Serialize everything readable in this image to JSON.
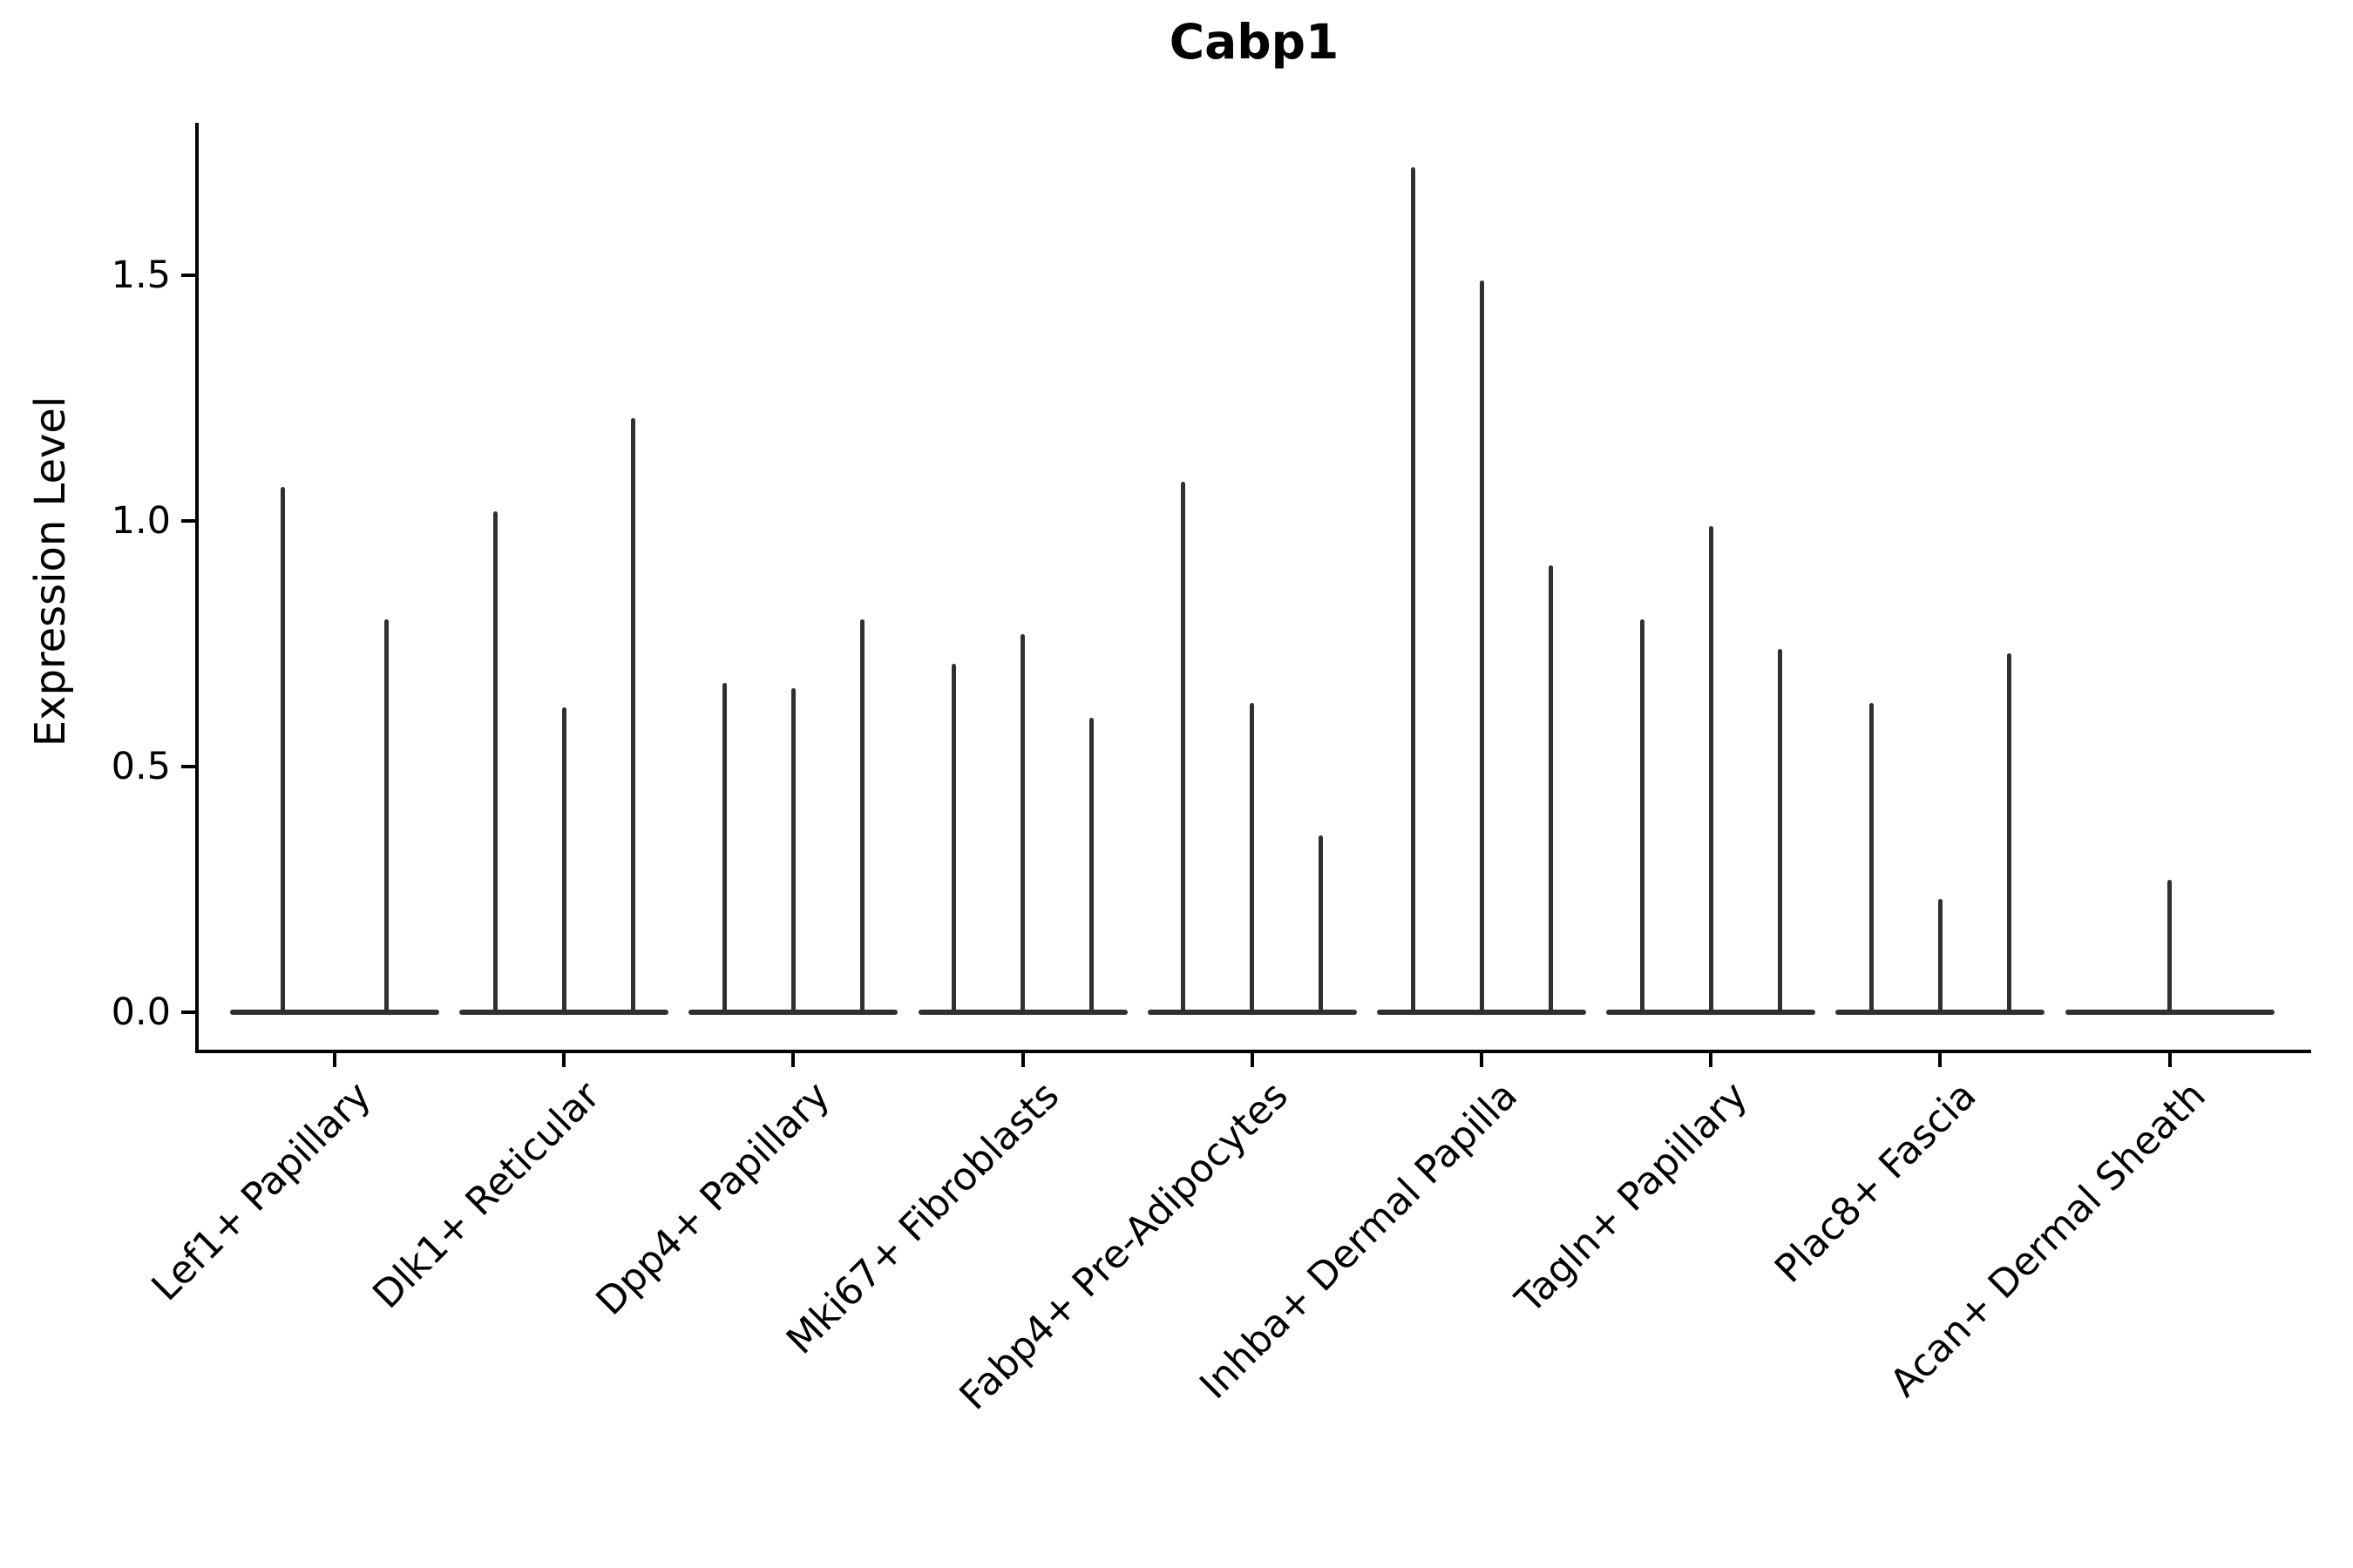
{
  "figure": {
    "title": "Cabp1"
  },
  "chart_data": {
    "type": "violin",
    "title": "Cabp1",
    "ylabel": "Expression Level",
    "xlabel": "",
    "ytick_labels": [
      "0.0",
      "0.5",
      "1.0",
      "1.5"
    ],
    "ytick_values": [
      0.0,
      0.5,
      1.0,
      1.5
    ],
    "ylim": [
      -0.08,
      1.81
    ],
    "grid": false,
    "legend": "none",
    "ink_color": "#000000",
    "violin_color": "#303030",
    "categories": [
      "Lef1+ Papillary",
      "Dlk1+ Reticular",
      "Dpp4+ Papillary",
      "Mki67+ Fibroblasts",
      "Fabp4+ Pre-Adipocytes",
      "Inhba+ Dermal Papilla",
      "Tagln+ Papillary",
      "Plac8+ Fascia",
      "Acan+ Dermal Sheath"
    ],
    "series": [
      {
        "category": "Lef1+ Papillary",
        "violin_peaks": [
          1.07,
          0.8
        ]
      },
      {
        "category": "Dlk1+ Reticular",
        "violin_peaks": [
          1.02,
          0.62,
          1.21
        ]
      },
      {
        "category": "Dpp4+ Papillary",
        "violin_peaks": [
          0.67,
          0.66,
          0.8
        ]
      },
      {
        "category": "Mki67+ Fibroblasts",
        "violin_peaks": [
          0.71,
          0.77,
          0.6
        ]
      },
      {
        "category": "Fabp4+ Pre-Adipocytes",
        "violin_peaks": [
          1.08,
          0.63,
          0.36
        ]
      },
      {
        "category": "Inhba+ Dermal Papilla",
        "violin_peaks": [
          1.72,
          1.49,
          0.91
        ]
      },
      {
        "category": "Tagln+ Papillary",
        "violin_peaks": [
          0.8,
          0.99,
          0.74
        ]
      },
      {
        "category": "Plac8+ Fascia",
        "violin_peaks": [
          0.63,
          0.23,
          0.73
        ]
      },
      {
        "category": "Acan+ Dermal Sheath",
        "violin_peaks": [
          0.27
        ]
      }
    ]
  }
}
